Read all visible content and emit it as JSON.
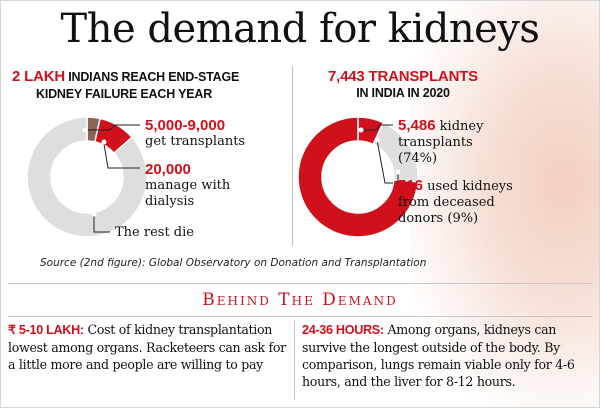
{
  "title": "The demand for kidneys",
  "left": {
    "heading_num": "2 LAKH",
    "heading_rest": " INDIANS REACH END-STAGE",
    "heading_line2": "KIDNEY FAILURE EACH YEAR",
    "labels": [
      {
        "num": "5,000-9,000",
        "text": "get transplants"
      },
      {
        "num": "20,000",
        "text": "manage with",
        "text2": "dialysis"
      },
      {
        "num": "",
        "text": "The rest die"
      }
    ]
  },
  "right": {
    "heading_num": "7,443 TRANSPLANTS",
    "heading_line2": "IN INDIA IN 2020",
    "labels": [
      {
        "num": "5,486",
        "text": " kidney",
        "text2": "transplants",
        "text3": "(74%)"
      },
      {
        "num": "516",
        "text": " used kidneys",
        "text2": "from deceased",
        "text3": "donors (9%)"
      }
    ]
  },
  "source": "Source (2nd figure): Global Observatory on Donation and Transplantation",
  "behind": "Behind The Demand",
  "bottom": {
    "left_key": "₹ 5-10 LAKH:",
    "left_text": " Cost of kidney transplantation lowest among organs. Racketeers can ask for a little more and people are willing to pay",
    "right_key": "24-36 HOURS:",
    "right_text": " Among organs, kidneys can survive the longest outside of the body. By comparison, lungs remain viable only for 4-6 hours, and the liver for 8-12 hours."
  },
  "colors": {
    "red": "#d0111b",
    "brown": "#8a6354",
    "grey": "#dedede"
  },
  "chart_data": [
    {
      "type": "pie",
      "title": "2 LAKH INDIANS REACH END-STAGE KIDNEY FAILURE EACH YEAR",
      "total": 200000,
      "slices": [
        {
          "label": "get transplants",
          "value": 7000,
          "color": "#8a6354"
        },
        {
          "label": "manage with dialysis",
          "value": 20000,
          "color": "#d0111b"
        },
        {
          "label": "The rest die",
          "value": 173000,
          "color": "#dedede"
        }
      ]
    },
    {
      "type": "pie",
      "title": "7,443 TRANSPLANTS IN INDIA IN 2020",
      "total": 7443,
      "slices": [
        {
          "label": "used kidneys from deceased donors",
          "value": 516,
          "color": "#d0111b"
        },
        {
          "label": "other",
          "value": 1441,
          "color": "#dedede"
        },
        {
          "label": "kidney transplants",
          "value": 5486,
          "color": "#d0111b"
        }
      ]
    }
  ]
}
